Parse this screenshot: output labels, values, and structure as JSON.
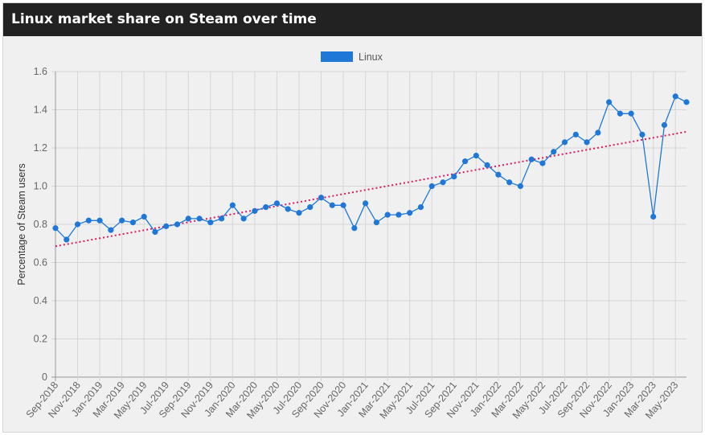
{
  "page": {
    "title": "Linux market share on Steam over time"
  },
  "colors": {
    "header_bg": "#222222",
    "panel_bg": "#f0f0f0",
    "series": "#1f78d8",
    "trend": "#d81b60",
    "grid": "#d6d6d6"
  },
  "chart_data": {
    "type": "line",
    "title": "Linux market share on Steam over time",
    "xlabel": "",
    "ylabel": "Percentage of Steam users",
    "ylim": [
      0,
      1.6
    ],
    "yticks": [
      "0",
      "0.2",
      "0.4",
      "0.6",
      "0.8",
      "1.0",
      "1.2",
      "1.4",
      "1.6"
    ],
    "grid": true,
    "legend": {
      "position": "top-center",
      "entries": [
        "Linux"
      ]
    },
    "x": [
      "Sep-2018",
      "Oct-2018",
      "Nov-2018",
      "Dec-2018",
      "Jan-2019",
      "Feb-2019",
      "Mar-2019",
      "Apr-2019",
      "May-2019",
      "Jun-2019",
      "Jul-2019",
      "Aug-2019",
      "Sep-2019",
      "Oct-2019",
      "Nov-2019",
      "Dec-2019",
      "Jan-2020",
      "Feb-2020",
      "Mar-2020",
      "Apr-2020",
      "May-2020",
      "Jun-2020",
      "Jul-2020",
      "Aug-2020",
      "Sep-2020",
      "Oct-2020",
      "Nov-2020",
      "Dec-2020",
      "Jan-2021",
      "Feb-2021",
      "Mar-2021",
      "Apr-2021",
      "May-2021",
      "Jun-2021",
      "Jul-2021",
      "Aug-2021",
      "Sep-2021",
      "Oct-2021",
      "Nov-2021",
      "Dec-2021",
      "Jan-2022",
      "Feb-2022",
      "Mar-2022",
      "Apr-2022",
      "May-2022",
      "Jun-2022",
      "Jul-2022",
      "Aug-2022",
      "Sep-2022",
      "Oct-2022",
      "Nov-2022",
      "Dec-2022",
      "Jan-2023",
      "Feb-2023",
      "Mar-2023",
      "Apr-2023",
      "May-2023",
      "Jun-2023"
    ],
    "x_tick_labels": [
      "Sep-2018",
      "Nov-2018",
      "Jan-2019",
      "Mar-2019",
      "May-2019",
      "Jul-2019",
      "Sep-2019",
      "Nov-2019",
      "Jan-2020",
      "Mar-2020",
      "May-2020",
      "Jul-2020",
      "Sep-2020",
      "Nov-2020",
      "Jan-2021",
      "Mar-2021",
      "May-2021",
      "Jul-2021",
      "Sep-2021",
      "Nov-2021",
      "Jan-2022",
      "Mar-2022",
      "May-2022",
      "Jul-2022",
      "Sep-2022",
      "Nov-2022",
      "Jan-2023",
      "Mar-2023",
      "May-2023"
    ],
    "series": [
      {
        "name": "Linux",
        "values": [
          0.78,
          0.72,
          0.8,
          0.82,
          0.82,
          0.77,
          0.82,
          0.81,
          0.84,
          0.76,
          0.79,
          0.8,
          0.83,
          0.83,
          0.81,
          0.83,
          0.9,
          0.83,
          0.87,
          0.89,
          0.91,
          0.88,
          0.86,
          0.89,
          0.94,
          0.9,
          0.9,
          0.78,
          0.91,
          0.81,
          0.85,
          0.85,
          0.86,
          0.89,
          1.0,
          1.02,
          1.05,
          1.13,
          1.16,
          1.11,
          1.06,
          1.02,
          1.0,
          1.14,
          1.12,
          1.18,
          1.23,
          1.27,
          1.23,
          1.28,
          1.44,
          1.38,
          1.38,
          1.27,
          0.84,
          1.32,
          1.47,
          1.44
        ]
      }
    ],
    "trendline": {
      "style": "dotted",
      "start": 0.685,
      "end": 1.285
    }
  }
}
